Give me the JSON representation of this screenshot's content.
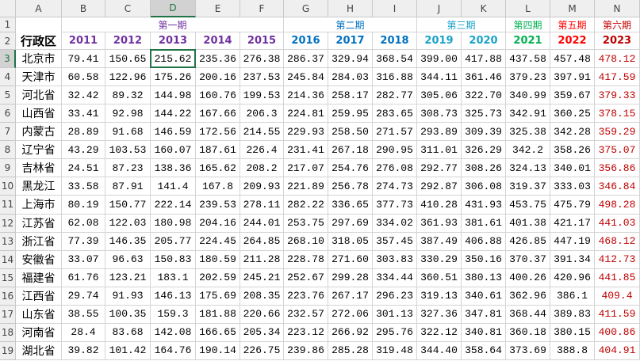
{
  "columns": [
    "A",
    "B",
    "C",
    "D",
    "E",
    "F",
    "G",
    "H",
    "I",
    "J",
    "K",
    "L",
    "M",
    "N"
  ],
  "row_numbers": [
    1,
    2,
    3,
    4,
    5,
    6,
    7,
    8,
    9,
    10,
    11,
    12,
    13,
    14,
    15,
    16,
    17,
    18,
    19
  ],
  "header_label": "行政区",
  "periods": [
    {
      "label": "第一期",
      "color": "#7030a0",
      "years": [
        2011,
        2012,
        2013,
        2014,
        2015
      ]
    },
    {
      "label": "第二期",
      "color": "#0070c0",
      "years": [
        2016,
        2017,
        2018
      ]
    },
    {
      "label": "第三期",
      "color": "#17a2c8",
      "years": [
        2019,
        2020
      ]
    },
    {
      "label": "第四期",
      "color": "#00b050",
      "years": [
        2021
      ]
    },
    {
      "label": "第五期",
      "color": "#ff0000",
      "years": [
        2022
      ]
    },
    {
      "label": "第六期",
      "color": "#c00000",
      "years": [
        2023
      ],
      "values_color": "#c00000"
    }
  ],
  "rows": [
    {
      "name": "北京市",
      "values": [
        "79.41",
        "150.65",
        "215.62",
        "235.36",
        "276.38",
        "286.37",
        "329.94",
        "368.54",
        "399.00",
        "417.88",
        "437.58",
        "457.48",
        "478.12"
      ]
    },
    {
      "name": "天津市",
      "values": [
        "60.58",
        "122.96",
        "175.26",
        "200.16",
        "237.53",
        "245.84",
        "284.03",
        "316.88",
        "344.11",
        "361.46",
        "379.23",
        "397.91",
        "417.59"
      ]
    },
    {
      "name": "河北省",
      "values": [
        "32.42",
        "89.32",
        "144.98",
        "160.76",
        "199.53",
        "214.36",
        "258.17",
        "282.77",
        "305.06",
        "322.70",
        "340.99",
        "359.67",
        "379.33"
      ]
    },
    {
      "name": "山西省",
      "values": [
        "33.41",
        "92.98",
        "144.22",
        "167.66",
        "206.3",
        "224.81",
        "259.95",
        "283.65",
        "308.73",
        "325.73",
        "342.91",
        "360.25",
        "378.15"
      ]
    },
    {
      "name": "内蒙古",
      "values": [
        "28.89",
        "91.68",
        "146.59",
        "172.56",
        "214.55",
        "229.93",
        "258.50",
        "271.57",
        "293.89",
        "309.39",
        "325.38",
        "342.28",
        "359.29"
      ]
    },
    {
      "name": "辽宁省",
      "values": [
        "43.29",
        "103.53",
        "160.07",
        "187.61",
        "226.4",
        "231.41",
        "267.18",
        "290.95",
        "311.01",
        "326.29",
        "342.2",
        "358.26",
        "375.07"
      ]
    },
    {
      "name": "吉林省",
      "values": [
        "24.51",
        "87.23",
        "138.36",
        "165.62",
        "208.2",
        "217.07",
        "254.76",
        "276.08",
        "292.77",
        "308.26",
        "324.13",
        "340.01",
        "356.86"
      ]
    },
    {
      "name": "黑龙江",
      "values": [
        "33.58",
        "87.91",
        "141.4",
        "167.8",
        "209.93",
        "221.89",
        "256.78",
        "274.73",
        "292.87",
        "306.08",
        "319.37",
        "333.03",
        "346.84"
      ]
    },
    {
      "name": "上海市",
      "values": [
        "80.19",
        "150.77",
        "222.14",
        "239.53",
        "278.11",
        "282.22",
        "336.65",
        "377.73",
        "410.28",
        "431.93",
        "453.75",
        "475.79",
        "498.28"
      ]
    },
    {
      "name": "江苏省",
      "values": [
        "62.08",
        "122.03",
        "180.98",
        "204.16",
        "244.01",
        "253.75",
        "297.69",
        "334.02",
        "361.93",
        "381.61",
        "401.38",
        "421.17",
        "441.03"
      ]
    },
    {
      "name": "浙江省",
      "values": [
        "77.39",
        "146.35",
        "205.77",
        "224.45",
        "264.85",
        "268.10",
        "318.05",
        "357.45",
        "387.49",
        "406.88",
        "426.85",
        "447.19",
        "468.12"
      ]
    },
    {
      "name": "安徽省",
      "values": [
        "33.07",
        "96.63",
        "150.83",
        "180.59",
        "211.28",
        "228.78",
        "271.60",
        "303.83",
        "330.29",
        "350.16",
        "370.37",
        "391.34",
        "412.73"
      ]
    },
    {
      "name": "福建省",
      "values": [
        "61.76",
        "123.21",
        "183.1",
        "202.59",
        "245.21",
        "252.67",
        "299.28",
        "334.44",
        "360.51",
        "380.13",
        "400.26",
        "420.96",
        "441.85"
      ]
    },
    {
      "name": "江西省",
      "values": [
        "29.74",
        "91.93",
        "146.13",
        "175.69",
        "208.35",
        "223.76",
        "267.17",
        "296.23",
        "319.13",
        "340.61",
        "362.96",
        "386.1",
        "409.4"
      ]
    },
    {
      "name": "山东省",
      "values": [
        "38.55",
        "100.35",
        "159.3",
        "181.88",
        "220.66",
        "232.57",
        "272.06",
        "301.13",
        "327.36",
        "347.81",
        "368.44",
        "389.83",
        "411.59"
      ]
    },
    {
      "name": "河南省",
      "values": [
        "28.4",
        "83.68",
        "142.08",
        "166.65",
        "205.34",
        "223.12",
        "266.92",
        "295.76",
        "322.12",
        "340.81",
        "360.18",
        "380.15",
        "400.86"
      ]
    },
    {
      "name": "湖北省",
      "values": [
        "39.82",
        "101.42",
        "164.76",
        "190.14",
        "226.75",
        "239.86",
        "285.28",
        "319.48",
        "344.40",
        "358.64",
        "373.69",
        "388.8",
        "404.91"
      ]
    }
  ]
}
